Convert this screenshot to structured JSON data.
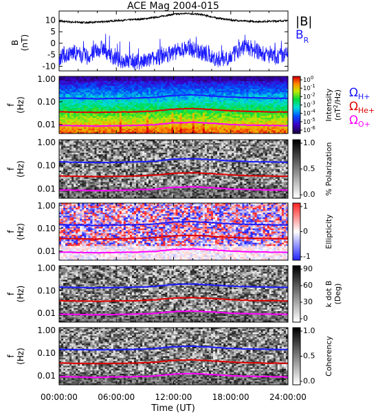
{
  "title": "ACE Mag 2004-015",
  "xlabel": "Time (UT)",
  "x_ticks": [
    "00:00:00",
    "06:00:00",
    "12:00:00",
    "18:00:00",
    "24:00:00"
  ],
  "colors": {
    "black": "#000000",
    "blue": "#1a1aff",
    "red": "#e00000",
    "magenta": "#ff00ff"
  },
  "chart_data": [
    {
      "type": "line",
      "panel": "B",
      "ylabel": "B",
      "yunit": "(nT)",
      "ylim": [
        -12,
        14
      ],
      "y_ticks": [
        "10",
        "5",
        "0",
        "-5",
        "-10"
      ],
      "y_tick_values": [
        10,
        5,
        0,
        -5,
        -10
      ],
      "x": [
        0,
        1.5,
        3,
        4.5,
        6,
        7.5,
        9,
        10.5,
        12,
        13.5,
        15,
        16.5,
        18,
        19.5,
        21,
        22.5,
        24
      ],
      "series": [
        {
          "name": "|B|",
          "color": "black",
          "values": [
            9.5,
            9.2,
            9.0,
            9.3,
            9.8,
            10.2,
            10.6,
            11.5,
            12.6,
            13.0,
            12.4,
            11.0,
            10.1,
            9.6,
            9.4,
            9.6,
            9.8
          ]
        },
        {
          "name": "B_R",
          "color": "blue",
          "values": [
            -6,
            -4,
            -6,
            -2,
            -7,
            -8,
            -8,
            -6,
            -4,
            -2,
            -4,
            -7,
            -6,
            -1,
            -4,
            -6,
            -5
          ]
        }
      ]
    },
    {
      "type": "heatmap",
      "panel": "power",
      "ylabel": "f",
      "yunit": "(Hz)",
      "y_ticks": [
        "1.00",
        "0.10",
        "0.01"
      ],
      "colorbar_label": "Intensity",
      "colorbar_unit": "(nT^2/Hz)",
      "colorbar_ticks": [
        "10^0",
        "10^-1",
        "10^-2",
        "10^-3",
        "10^-4",
        "10^-5",
        "10^-6"
      ],
      "legend": [
        {
          "label": "Ω",
          "sub": "H+",
          "color": "blue"
        },
        {
          "label": "Ω",
          "sub": "He+",
          "color": "red"
        },
        {
          "label": "Ω",
          "sub": "O+",
          "color": "magenta"
        }
      ]
    },
    {
      "type": "heatmap",
      "panel": "polarization",
      "ylabel": "f",
      "yunit": "(Hz)",
      "y_ticks": [
        "1.00",
        "0.10",
        "0.01"
      ],
      "colorbar_label": "% Polarization",
      "colorbar_ticks": [
        "1.0",
        "0.5",
        "0.0"
      ]
    },
    {
      "type": "heatmap",
      "panel": "ellipticity",
      "ylabel": "f",
      "yunit": "(Hz)",
      "y_ticks": [
        "1.00",
        "0.10",
        "0.01"
      ],
      "colorbar_label": "Ellipticity",
      "colorbar_ticks": [
        "1",
        "0",
        "-1"
      ]
    },
    {
      "type": "heatmap",
      "panel": "wave_angle",
      "ylabel": "f",
      "yunit": "(Hz)",
      "y_ticks": [
        "1.00",
        "0.10",
        "0.01"
      ],
      "colorbar_label": "k dot B",
      "colorbar_unit": "(Deg)",
      "colorbar_ticks": [
        "90",
        "60",
        "30",
        "0"
      ]
    },
    {
      "type": "heatmap",
      "panel": "coherency",
      "ylabel": "f",
      "yunit": "(Hz)",
      "y_ticks": [
        "1.00",
        "0.10",
        "0.01"
      ],
      "colorbar_label": "Coherency",
      "colorbar_ticks": [
        "1.0",
        "0.5",
        "0.0"
      ]
    }
  ],
  "gyrofrequencies": {
    "x": [
      0,
      2,
      4,
      6,
      8,
      10,
      12,
      14,
      16,
      18,
      20,
      22,
      24
    ],
    "H+": [
      0.145,
      0.14,
      0.135,
      0.14,
      0.145,
      0.155,
      0.19,
      0.2,
      0.18,
      0.16,
      0.15,
      0.145,
      0.14
    ],
    "He+": [
      0.036,
      0.035,
      0.034,
      0.035,
      0.036,
      0.039,
      0.047,
      0.05,
      0.045,
      0.04,
      0.037,
      0.036,
      0.035
    ],
    "O+": [
      0.0091,
      0.0088,
      0.0085,
      0.0088,
      0.0091,
      0.0097,
      0.0118,
      0.0125,
      0.0113,
      0.01,
      0.0094,
      0.0091,
      0.0088
    ]
  }
}
